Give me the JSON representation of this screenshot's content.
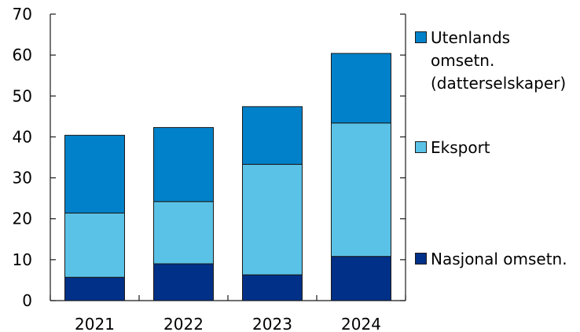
{
  "chart_data": {
    "type": "bar",
    "stacked": true,
    "categories": [
      "2021",
      "2022",
      "2023",
      "2024"
    ],
    "series": [
      {
        "name": "Nasjonal omsetn.",
        "values": [
          5.7,
          9.0,
          6.3,
          10.8
        ],
        "color": "#003087"
      },
      {
        "name": "Eksport",
        "values": [
          15.7,
          15.2,
          27.0,
          32.6
        ],
        "color": "#5bc2e7"
      },
      {
        "name": "Utenlands omsetn. (datterselskaper)",
        "values": [
          19.0,
          18.1,
          14.1,
          17.0
        ],
        "color": "#0081c9"
      }
    ],
    "ylim": [
      0,
      70
    ],
    "yticks": [
      0,
      10,
      20,
      30,
      40,
      50,
      60,
      70
    ],
    "grid": false,
    "legend_position": "right"
  },
  "legend": {
    "items": [
      {
        "label": "Utenlands\nomsetn.\n(datterselskaper)",
        "color": "#0081c9"
      },
      {
        "label": "Eksport",
        "color": "#5bc2e7"
      },
      {
        "label": "Nasjonal omsetn.",
        "color": "#003087"
      }
    ]
  }
}
